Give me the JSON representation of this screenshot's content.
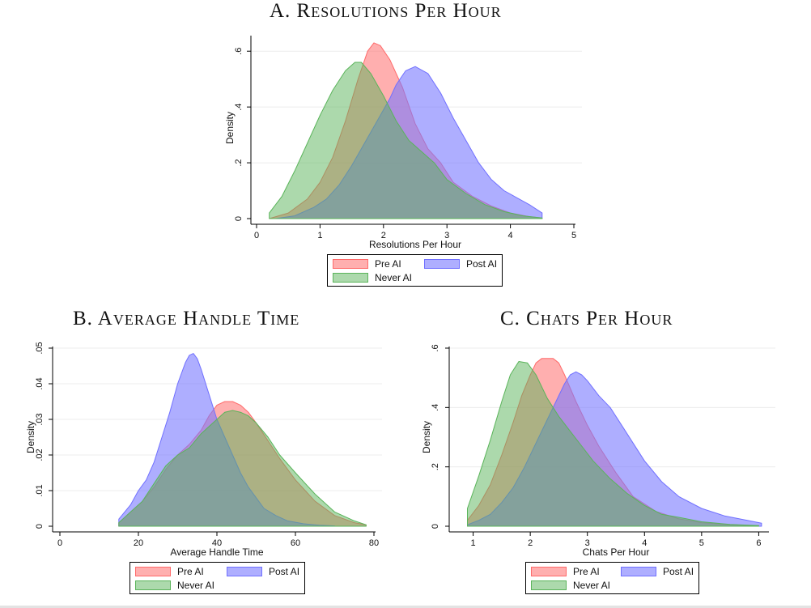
{
  "colors": {
    "pre_fill": "rgba(255,110,110,0.55)",
    "pre_line": "#ff6a6a",
    "post_fill": "rgba(120,120,255,0.60)",
    "post_line": "#7070ff",
    "never_fill": "rgba(90,180,90,0.50)",
    "never_line": "#5ab45a"
  },
  "chart_data": [
    {
      "id": "A",
      "type": "area",
      "title": "A. Resolutions Per Hour",
      "xlabel": "Resolutions Per Hour",
      "ylabel": "Density",
      "xlim": [
        0,
        5
      ],
      "ylim": [
        0,
        0.65
      ],
      "xticks": [
        "0",
        "1",
        "2",
        "3",
        "4",
        "5"
      ],
      "xtick_values": [
        0,
        1,
        2,
        3,
        4,
        5
      ],
      "yticks": [
        "0",
        ".2",
        ".4",
        ".6"
      ],
      "ytick_values": [
        0,
        0.2,
        0.4,
        0.6
      ],
      "grid": true,
      "legend": "bottom",
      "series": [
        {
          "name": "Pre AI",
          "x": [
            0.2,
            0.5,
            0.8,
            1.0,
            1.2,
            1.4,
            1.6,
            1.75,
            1.85,
            1.95,
            2.1,
            2.3,
            2.5,
            2.7,
            2.9,
            3.1,
            3.4,
            3.7,
            4.0,
            4.3,
            4.5
          ],
          "y": [
            0,
            0.02,
            0.07,
            0.13,
            0.22,
            0.35,
            0.5,
            0.6,
            0.63,
            0.62,
            0.57,
            0.47,
            0.34,
            0.25,
            0.2,
            0.13,
            0.08,
            0.045,
            0.02,
            0.007,
            0.002
          ]
        },
        {
          "name": "Post AI",
          "x": [
            0.3,
            0.6,
            0.9,
            1.1,
            1.3,
            1.5,
            1.7,
            1.9,
            2.1,
            2.2,
            2.35,
            2.5,
            2.7,
            2.9,
            3.1,
            3.3,
            3.5,
            3.7,
            3.9,
            4.1,
            4.3,
            4.5
          ],
          "y": [
            0,
            0.01,
            0.04,
            0.07,
            0.12,
            0.19,
            0.27,
            0.35,
            0.43,
            0.48,
            0.53,
            0.545,
            0.52,
            0.45,
            0.36,
            0.28,
            0.2,
            0.14,
            0.1,
            0.075,
            0.05,
            0.02
          ]
        },
        {
          "name": "Never AI",
          "x": [
            0.2,
            0.4,
            0.6,
            0.8,
            1.0,
            1.2,
            1.4,
            1.55,
            1.65,
            1.8,
            2.0,
            2.2,
            2.4,
            2.6,
            2.8,
            3.0,
            3.3,
            3.6,
            3.9,
            4.2,
            4.5
          ],
          "y": [
            0.02,
            0.08,
            0.17,
            0.27,
            0.37,
            0.46,
            0.53,
            0.56,
            0.56,
            0.52,
            0.44,
            0.35,
            0.28,
            0.24,
            0.2,
            0.14,
            0.09,
            0.05,
            0.025,
            0.01,
            0.002
          ]
        }
      ]
    },
    {
      "id": "B",
      "type": "area",
      "title": "B. Average Handle Time",
      "xlabel": "Average Handle Time",
      "ylabel": "Density",
      "xlim": [
        0,
        80
      ],
      "ylim": [
        0,
        0.05
      ],
      "xticks": [
        "0",
        "20",
        "40",
        "60",
        "80"
      ],
      "xtick_values": [
        0,
        20,
        40,
        60,
        80
      ],
      "yticks": [
        "0",
        ".01",
        ".02",
        ".03",
        ".04",
        ".05"
      ],
      "ytick_values": [
        0,
        0.01,
        0.02,
        0.03,
        0.04,
        0.05
      ],
      "grid": true,
      "legend": "bottom",
      "series": [
        {
          "name": "Pre AI",
          "x": [
            15,
            18,
            21,
            24,
            27,
            30,
            33,
            36,
            38,
            40,
            42,
            44,
            46,
            48,
            50,
            53,
            56,
            60,
            65,
            70,
            75,
            78
          ],
          "y": [
            0.001,
            0.004,
            0.007,
            0.011,
            0.016,
            0.02,
            0.023,
            0.027,
            0.031,
            0.034,
            0.035,
            0.035,
            0.034,
            0.032,
            0.029,
            0.024,
            0.019,
            0.013,
            0.007,
            0.003,
            0.001,
            0.0004
          ]
        },
        {
          "name": "Post AI",
          "x": [
            15,
            18,
            20,
            22,
            24,
            26,
            28,
            30,
            32,
            33,
            34,
            35,
            36,
            38,
            40,
            42,
            44,
            46,
            48,
            50,
            52,
            55,
            58,
            62,
            66,
            70
          ],
          "y": [
            0.002,
            0.006,
            0.01,
            0.013,
            0.018,
            0.025,
            0.032,
            0.04,
            0.046,
            0.048,
            0.0485,
            0.047,
            0.044,
            0.037,
            0.03,
            0.025,
            0.02,
            0.015,
            0.011,
            0.008,
            0.005,
            0.003,
            0.0015,
            0.0007,
            0.0003,
            0.0001
          ]
        },
        {
          "name": "Never AI",
          "x": [
            15,
            18,
            21,
            24,
            27,
            30,
            33,
            36,
            38,
            40,
            42,
            44,
            46,
            48,
            50,
            53,
            56,
            60,
            65,
            70,
            75,
            78
          ],
          "y": [
            0.001,
            0.004,
            0.007,
            0.012,
            0.017,
            0.02,
            0.022,
            0.026,
            0.028,
            0.03,
            0.032,
            0.0325,
            0.032,
            0.031,
            0.029,
            0.025,
            0.02,
            0.015,
            0.009,
            0.004,
            0.0015,
            0.0004
          ]
        }
      ]
    },
    {
      "id": "C",
      "type": "area",
      "title": "C. Chats Per Hour",
      "xlabel": "Chats Per Hour",
      "ylabel": "Density",
      "xlim": [
        0.85,
        6.15
      ],
      "ylim": [
        0,
        0.6
      ],
      "xticks": [
        "1",
        "2",
        "3",
        "4",
        "5",
        "6"
      ],
      "xtick_values": [
        1,
        2,
        3,
        4,
        5,
        6
      ],
      "yticks": [
        "0",
        ".2",
        ".4",
        ".6"
      ],
      "ytick_values": [
        0,
        0.2,
        0.4,
        0.6
      ],
      "grid": true,
      "legend": "bottom",
      "series": [
        {
          "name": "Pre AI",
          "x": [
            0.9,
            1.1,
            1.3,
            1.5,
            1.7,
            1.85,
            2.0,
            2.1,
            2.2,
            2.3,
            2.4,
            2.5,
            2.6,
            2.8,
            3.0,
            3.2,
            3.5,
            3.8,
            4.2,
            4.6,
            5.0,
            5.5,
            6.0
          ],
          "y": [
            0.02,
            0.07,
            0.14,
            0.24,
            0.35,
            0.44,
            0.51,
            0.55,
            0.565,
            0.565,
            0.565,
            0.55,
            0.51,
            0.42,
            0.34,
            0.27,
            0.18,
            0.1,
            0.05,
            0.025,
            0.012,
            0.005,
            0.002
          ]
        },
        {
          "name": "Post AI",
          "x": [
            0.9,
            1.1,
            1.3,
            1.5,
            1.7,
            1.9,
            2.1,
            2.3,
            2.45,
            2.6,
            2.7,
            2.8,
            2.9,
            3.0,
            3.2,
            3.4,
            3.6,
            3.8,
            4.0,
            4.3,
            4.6,
            5.0,
            5.4,
            5.8,
            6.05
          ],
          "y": [
            0.005,
            0.02,
            0.04,
            0.08,
            0.13,
            0.2,
            0.28,
            0.36,
            0.42,
            0.48,
            0.51,
            0.52,
            0.51,
            0.49,
            0.44,
            0.4,
            0.34,
            0.28,
            0.22,
            0.15,
            0.1,
            0.06,
            0.035,
            0.02,
            0.01
          ]
        },
        {
          "name": "Never AI",
          "x": [
            0.9,
            1.1,
            1.3,
            1.5,
            1.65,
            1.8,
            1.95,
            2.1,
            2.3,
            2.5,
            2.7,
            2.9,
            3.1,
            3.4,
            3.7,
            4.0,
            4.3,
            4.6,
            5.0,
            5.5,
            6.0
          ],
          "y": [
            0.06,
            0.17,
            0.29,
            0.42,
            0.51,
            0.555,
            0.55,
            0.51,
            0.43,
            0.37,
            0.32,
            0.27,
            0.22,
            0.16,
            0.11,
            0.07,
            0.04,
            0.03,
            0.015,
            0.006,
            0.002
          ]
        }
      ]
    }
  ]
}
